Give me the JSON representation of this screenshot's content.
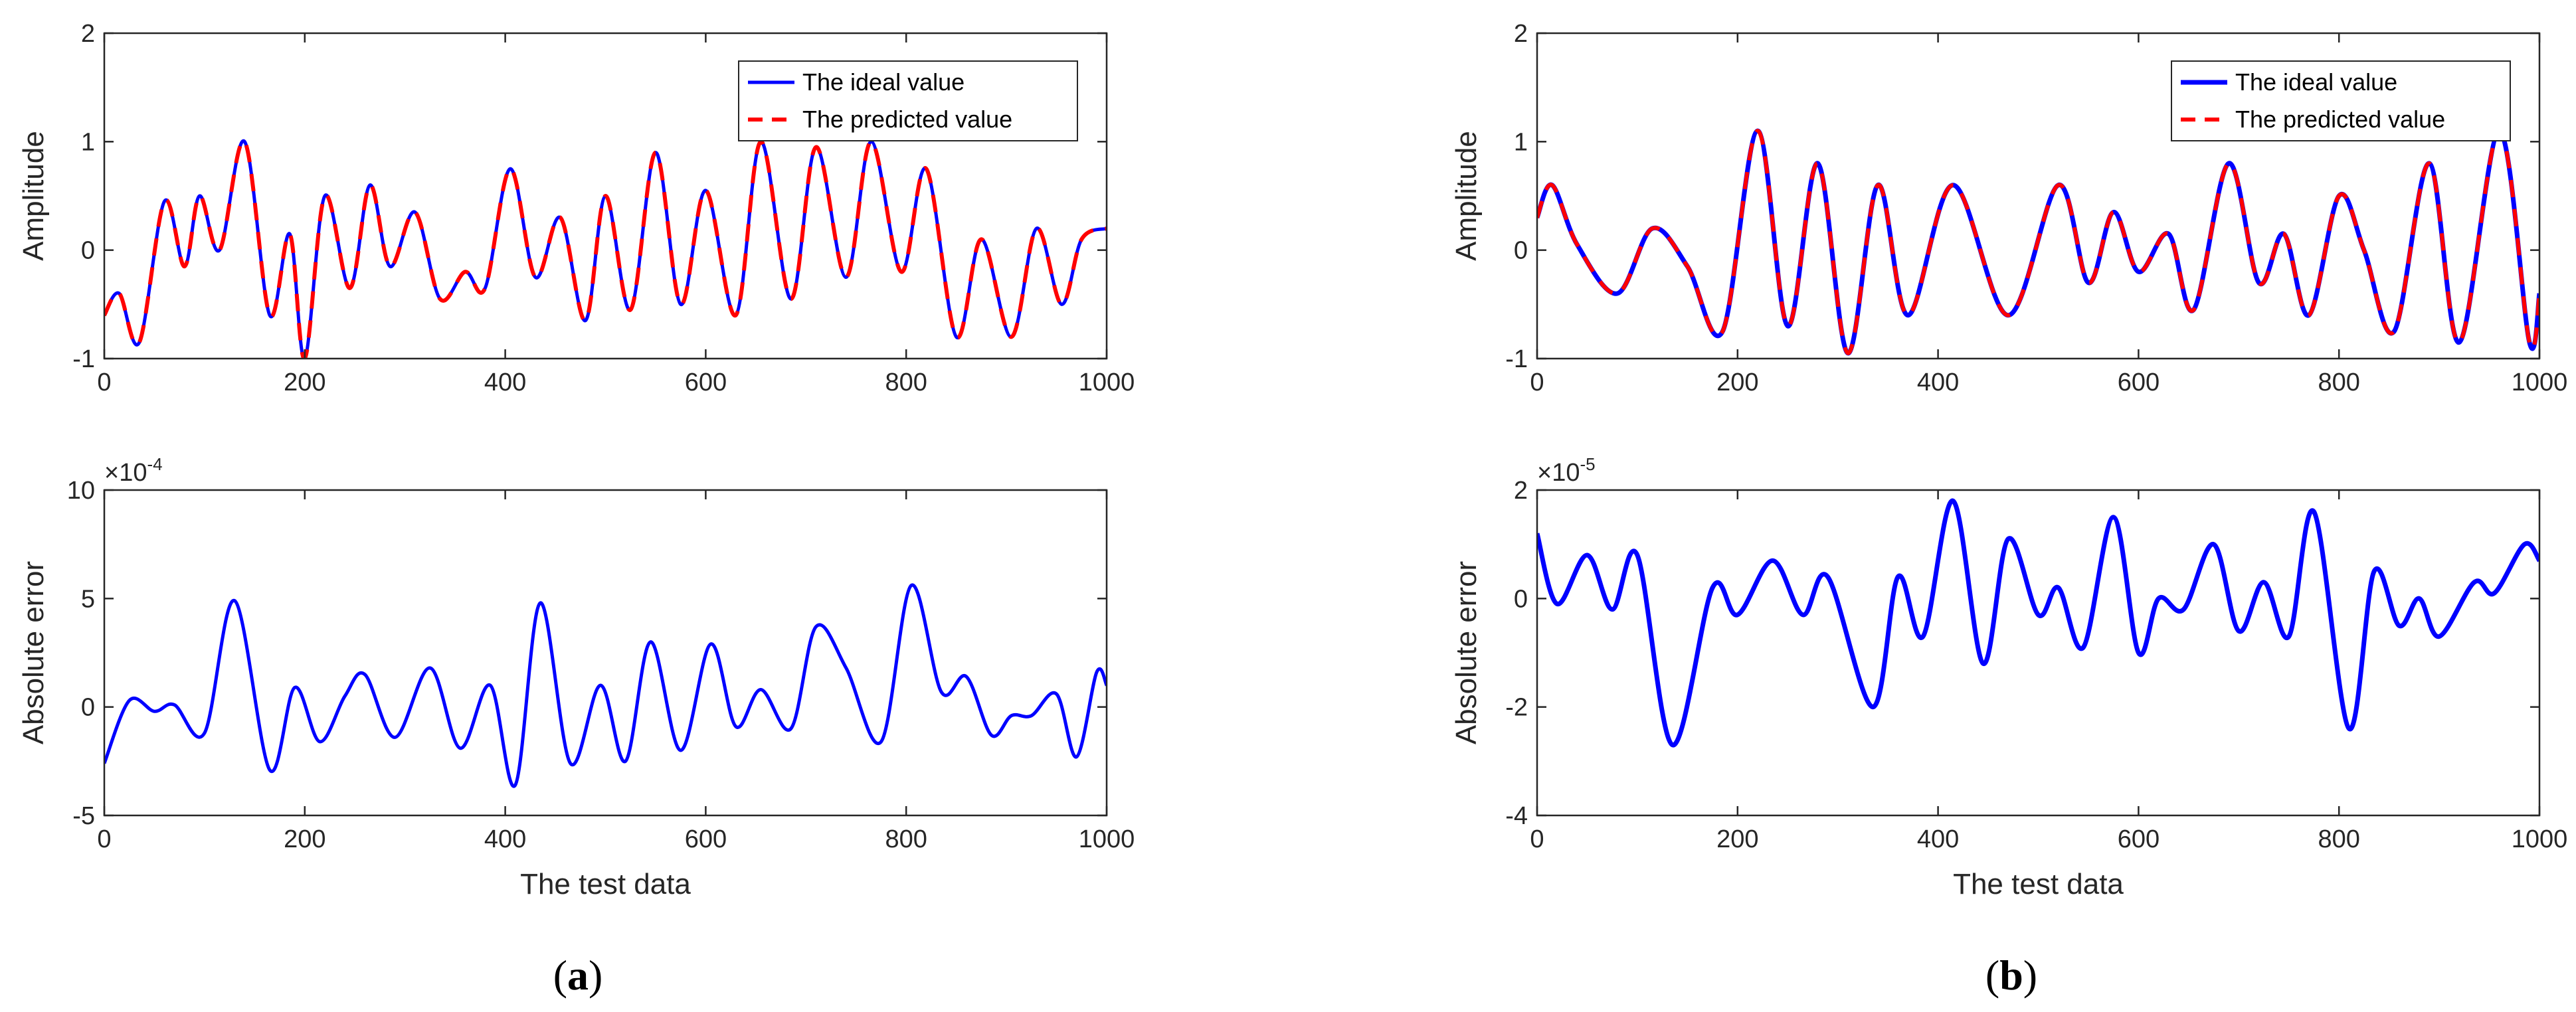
{
  "colors": {
    "ideal": "#0000ff",
    "predicted": "#ff0000",
    "axes": "#262626",
    "background": "#ffffff"
  },
  "chart_data": [
    {
      "id": "a-top",
      "type": "line",
      "panel": "a",
      "xlabel": "",
      "ylabel": "Amplitude",
      "xlim": [
        0,
        1000
      ],
      "ylim": [
        -1,
        2
      ],
      "xticks": [
        0,
        200,
        400,
        600,
        800,
        1000
      ],
      "yticks": [
        -1,
        0,
        1,
        2
      ],
      "legend": {
        "placement": "top-right",
        "entries": [
          "The ideal value",
          "The predicted value"
        ]
      },
      "x": [
        0,
        15,
        35,
        60,
        80,
        95,
        115,
        140,
        165,
        185,
        200,
        220,
        245,
        265,
        285,
        310,
        335,
        360,
        380,
        405,
        430,
        455,
        480,
        500,
        525,
        550,
        575,
        600,
        630,
        655,
        685,
        710,
        740,
        765,
        795,
        820,
        850,
        875,
        905,
        930,
        955,
        975,
        1000
      ],
      "series": [
        {
          "name": "The ideal value",
          "style": "solid",
          "values": [
            -0.6,
            -0.4,
            -0.85,
            0.45,
            -0.15,
            0.5,
            0.0,
            1.0,
            -0.6,
            0.15,
            -1.0,
            0.5,
            -0.35,
            0.6,
            -0.15,
            0.35,
            -0.45,
            -0.2,
            -0.35,
            0.75,
            -0.25,
            0.3,
            -0.65,
            0.5,
            -0.55,
            0.9,
            -0.5,
            0.55,
            -0.6,
            1.0,
            -0.45,
            0.95,
            -0.25,
            1.0,
            -0.2,
            0.75,
            -0.8,
            0.1,
            -0.8,
            0.2,
            -0.5,
            0.1,
            0.2
          ]
        },
        {
          "name": "The predicted value",
          "style": "dashed",
          "values": [
            -0.6,
            -0.4,
            -0.85,
            0.45,
            -0.15,
            0.5,
            0.0,
            1.0,
            -0.6,
            0.15,
            -1.0,
            0.5,
            -0.35,
            0.6,
            -0.15,
            0.35,
            -0.45,
            -0.2,
            -0.35,
            0.75,
            -0.25,
            0.3,
            -0.65,
            0.5,
            -0.55,
            0.9,
            -0.5,
            0.55,
            -0.6,
            1.0,
            -0.45,
            0.95,
            -0.25,
            1.0,
            -0.2,
            0.75,
            -0.8,
            0.1,
            -0.8,
            0.2,
            -0.5,
            0.1,
            0.2
          ]
        }
      ]
    },
    {
      "id": "a-bottom",
      "type": "line",
      "panel": "a",
      "xlabel": "The test data",
      "ylabel": "Absolute error",
      "xlim": [
        0,
        1000
      ],
      "ylim": [
        -5,
        10
      ],
      "xticks": [
        0,
        200,
        400,
        600,
        800,
        1000
      ],
      "yticks": [
        -5,
        0,
        5,
        10
      ],
      "exponent": {
        "base": "×10",
        "power": "-4"
      },
      "x": [
        0,
        25,
        50,
        70,
        100,
        130,
        165,
        190,
        215,
        240,
        260,
        290,
        325,
        355,
        385,
        410,
        435,
        465,
        495,
        520,
        545,
        575,
        605,
        630,
        655,
        685,
        710,
        740,
        775,
        805,
        835,
        860,
        885,
        905,
        925,
        950,
        970,
        990,
        1000
      ],
      "series": [
        {
          "name": "Absolute error",
          "style": "solid",
          "values": [
            -2.6,
            0.3,
            -0.2,
            0.1,
            -1.2,
            4.9,
            -2.9,
            0.9,
            -1.6,
            0.5,
            1.5,
            -1.4,
            1.8,
            -1.9,
            1.0,
            -3.6,
            4.8,
            -2.6,
            1.0,
            -2.5,
            3.0,
            -2.0,
            2.9,
            -0.9,
            0.8,
            -1.0,
            3.7,
            1.8,
            -1.6,
            5.6,
            0.7,
            1.4,
            -1.3,
            -0.4,
            -0.4,
            0.6,
            -2.3,
            1.6,
            1.0
          ]
        }
      ]
    },
    {
      "id": "b-top",
      "type": "line",
      "panel": "b",
      "xlabel": "",
      "ylabel": "Amplitude",
      "xlim": [
        0,
        1000
      ],
      "ylim": [
        -1,
        2
      ],
      "xticks": [
        0,
        200,
        400,
        600,
        800,
        1000
      ],
      "yticks": [
        -1,
        0,
        1,
        2
      ],
      "legend": {
        "placement": "top-right",
        "entries": [
          "The ideal value",
          "The predicted value"
        ]
      },
      "x": [
        0,
        15,
        40,
        80,
        115,
        150,
        185,
        220,
        250,
        280,
        310,
        340,
        370,
        415,
        470,
        520,
        550,
        575,
        600,
        630,
        655,
        690,
        720,
        745,
        770,
        800,
        825,
        855,
        890,
        920,
        960,
        990,
        1000
      ],
      "series": [
        {
          "name": "The ideal value",
          "style": "solid",
          "values": [
            0.3,
            0.6,
            0.05,
            -0.4,
            0.2,
            -0.15,
            -0.75,
            1.1,
            -0.7,
            0.8,
            -0.95,
            0.6,
            -0.6,
            0.6,
            -0.6,
            0.6,
            -0.3,
            0.35,
            -0.2,
            0.15,
            -0.55,
            0.8,
            -0.3,
            0.15,
            -0.6,
            0.5,
            0.0,
            -0.75,
            0.8,
            -0.85,
            1.1,
            -0.85,
            -0.4
          ]
        },
        {
          "name": "The predicted value",
          "style": "dashed",
          "values": [
            0.3,
            0.6,
            0.05,
            -0.4,
            0.2,
            -0.15,
            -0.75,
            1.1,
            -0.7,
            0.8,
            -0.95,
            0.6,
            -0.6,
            0.6,
            -0.6,
            0.6,
            -0.3,
            0.35,
            -0.2,
            0.15,
            -0.55,
            0.8,
            -0.3,
            0.15,
            -0.6,
            0.5,
            0.0,
            -0.75,
            0.8,
            -0.85,
            1.1,
            -0.85,
            -0.4
          ]
        }
      ]
    },
    {
      "id": "b-bottom",
      "type": "line",
      "panel": "b",
      "xlabel": "The test data",
      "ylabel": "Absolute error",
      "xlim": [
        0,
        1000
      ],
      "ylim": [
        -4,
        2
      ],
      "xticks": [
        0,
        200,
        400,
        600,
        800,
        1000
      ],
      "yticks": [
        -4,
        -2,
        0,
        2
      ],
      "exponent": {
        "base": "×10",
        "power": "-5"
      },
      "x": [
        0,
        20,
        50,
        75,
        100,
        135,
        175,
        200,
        235,
        265,
        290,
        335,
        360,
        385,
        415,
        445,
        470,
        500,
        520,
        545,
        575,
        600,
        620,
        645,
        675,
        700,
        725,
        750,
        775,
        810,
        835,
        860,
        880,
        900,
        935,
        955,
        985,
        1000
      ],
      "series": [
        {
          "name": "Absolute error",
          "style": "solid",
          "values": [
            1.2,
            -0.1,
            0.8,
            -0.2,
            0.8,
            -2.7,
            0.2,
            -0.3,
            0.7,
            -0.3,
            0.4,
            -2.0,
            0.4,
            -0.7,
            1.8,
            -1.2,
            1.1,
            -0.3,
            0.2,
            -0.9,
            1.5,
            -1.0,
            0.0,
            -0.2,
            1.0,
            -0.6,
            0.3,
            -0.7,
            1.6,
            -2.4,
            0.5,
            -0.5,
            0.0,
            -0.7,
            0.3,
            0.1,
            1.0,
            0.7
          ]
        }
      ]
    }
  ],
  "captions": {
    "a": "a",
    "b": "b"
  }
}
